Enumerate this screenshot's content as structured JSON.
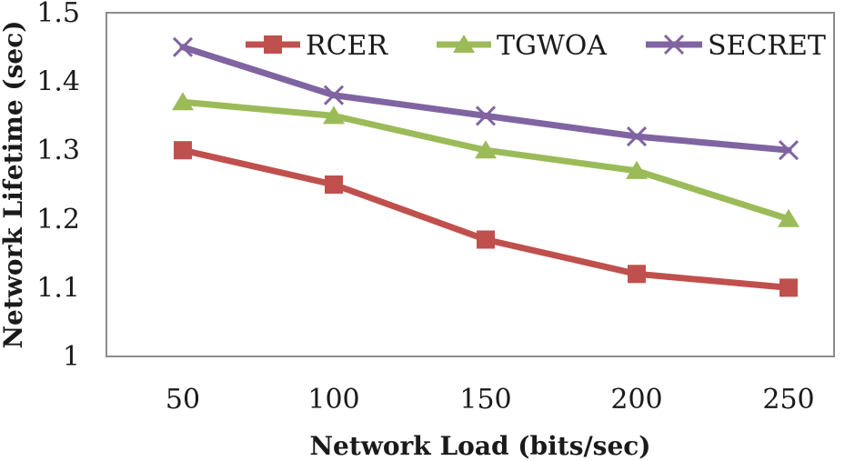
{
  "chart_data": {
    "type": "line",
    "title": "",
    "xlabel": "Network Load (bits/sec)",
    "ylabel": "Network Lifetime (sec)",
    "x": [
      50,
      100,
      150,
      200,
      250
    ],
    "x_tick_labels": [
      "50",
      "100",
      "150",
      "200",
      "250"
    ],
    "y_tick_labels": [
      "1",
      "1.1",
      "1.2",
      "1.3",
      "1.4",
      "1.5"
    ],
    "ylim": [
      1,
      1.5
    ],
    "y_ticks": [
      1,
      1.1,
      1.2,
      1.3,
      1.4,
      1.5
    ],
    "grid": false,
    "legend_position": "top",
    "series": [
      {
        "name": "RCER",
        "marker": "square",
        "color": "#c0504d",
        "values": [
          1.3,
          1.25,
          1.17,
          1.12,
          1.1
        ]
      },
      {
        "name": "TGWOA",
        "marker": "triangle",
        "color": "#9bbb59",
        "values": [
          1.37,
          1.35,
          1.3,
          1.27,
          1.2
        ]
      },
      {
        "name": "SECRET",
        "marker": "x",
        "color": "#8064a2",
        "values": [
          1.45,
          1.38,
          1.35,
          1.32,
          1.3
        ]
      }
    ]
  }
}
